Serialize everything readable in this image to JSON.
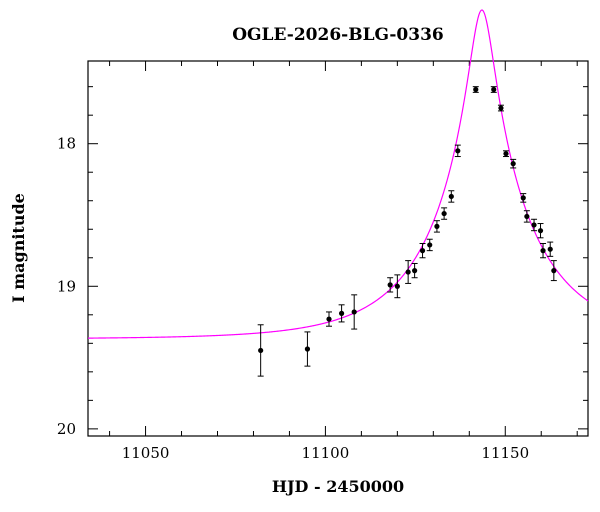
{
  "chart_data": {
    "type": "scatter",
    "title": "OGLE-2026-BLG-0336",
    "xlabel": "HJD - 2450000",
    "ylabel": "I magnitude",
    "xlim": [
      11034,
      11173
    ],
    "ylim": [
      20.05,
      17.42
    ],
    "y_inverted": true,
    "grid": false,
    "x_ticks": {
      "major": [
        11050,
        11100,
        11150
      ],
      "minor_step": 10
    },
    "y_ticks": {
      "major": [
        18,
        19,
        20
      ],
      "minor_step": 0.2
    },
    "x_tick_labels": [
      "11050",
      "11100",
      "11150"
    ],
    "y_tick_labels": [
      "18",
      "19",
      "20"
    ],
    "colors": {
      "model": "#ff00ff",
      "points": "#000000"
    },
    "series": [
      {
        "type": "scatter",
        "points": [
          {
            "x": 11082.0,
            "y": 19.45,
            "err": 0.18
          },
          {
            "x": 11095.0,
            "y": 19.44,
            "err": 0.12
          },
          {
            "x": 11101.0,
            "y": 19.23,
            "err": 0.05
          },
          {
            "x": 11104.5,
            "y": 19.19,
            "err": 0.06
          },
          {
            "x": 11108.0,
            "y": 19.18,
            "err": 0.12
          },
          {
            "x": 11118.0,
            "y": 18.99,
            "err": 0.05
          },
          {
            "x": 11120.0,
            "y": 19.0,
            "err": 0.08
          },
          {
            "x": 11123.0,
            "y": 18.9,
            "err": 0.08
          },
          {
            "x": 11124.8,
            "y": 18.89,
            "err": 0.05
          },
          {
            "x": 11127.0,
            "y": 18.75,
            "err": 0.05
          },
          {
            "x": 11129.0,
            "y": 18.71,
            "err": 0.04
          },
          {
            "x": 11131.0,
            "y": 18.58,
            "err": 0.04
          },
          {
            "x": 11133.0,
            "y": 18.49,
            "err": 0.04
          },
          {
            "x": 11135.0,
            "y": 18.37,
            "err": 0.04
          },
          {
            "x": 11136.8,
            "y": 18.05,
            "err": 0.04
          },
          {
            "x": 11141.8,
            "y": 17.62,
            "err": 0.02
          },
          {
            "x": 11146.8,
            "y": 17.62,
            "err": 0.02
          },
          {
            "x": 11148.8,
            "y": 17.75,
            "err": 0.02
          },
          {
            "x": 11150.2,
            "y": 18.07,
            "err": 0.02
          },
          {
            "x": 11152.2,
            "y": 18.14,
            "err": 0.03
          },
          {
            "x": 11155.0,
            "y": 18.38,
            "err": 0.03
          },
          {
            "x": 11156.0,
            "y": 18.51,
            "err": 0.04
          },
          {
            "x": 11158.0,
            "y": 18.57,
            "err": 0.04
          },
          {
            "x": 11159.8,
            "y": 18.61,
            "err": 0.05
          },
          {
            "x": 11160.5,
            "y": 18.75,
            "err": 0.05
          },
          {
            "x": 11162.5,
            "y": 18.74,
            "err": 0.05
          },
          {
            "x": 11163.5,
            "y": 18.89,
            "err": 0.07
          }
        ]
      },
      {
        "type": "line",
        "model": {
          "t0": 11143.5,
          "tE": 27.0,
          "u0": 0.12,
          "baseline": 19.37
        }
      }
    ]
  }
}
